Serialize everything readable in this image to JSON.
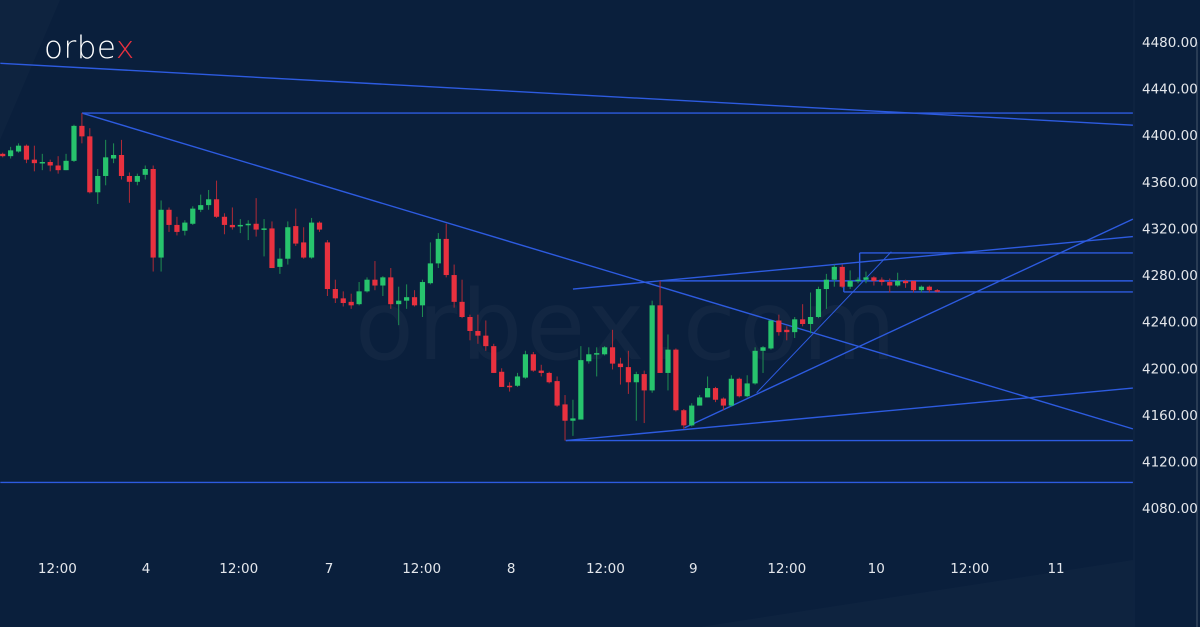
{
  "brand": {
    "logo_main": "orbe",
    "logo_accent": "x",
    "watermark": "orbex.com"
  },
  "colors": {
    "background": "#0a1f3c",
    "up": "#27c46d",
    "down": "#e8313f",
    "trendline": "#2d5be0",
    "axis_text": "#e4e7ec"
  },
  "chart_data": {
    "type": "candlestick",
    "title": "",
    "xlabel": "",
    "ylabel": "",
    "ylim": [
      3978,
      4516
    ],
    "grid": false,
    "y_ticks": [
      "4080.00",
      "4120.00",
      "4160.00",
      "4200.00",
      "4240.00",
      "4280.00",
      "4320.00",
      "4360.00",
      "4400.00",
      "4440.00",
      "4480.00"
    ],
    "y_tick_values": [
      4080,
      4120,
      4160,
      4200,
      4240,
      4280,
      4320,
      4360,
      4400,
      4440,
      4480
    ],
    "x_ticks": [
      {
        "label": "12:00",
        "bar": 6.9
      },
      {
        "label": "4",
        "bar": 18.1
      },
      {
        "label": "12:00",
        "bar": 29.8
      },
      {
        "label": "7",
        "bar": 41.2
      },
      {
        "label": "12:00",
        "bar": 52.9
      },
      {
        "label": "8",
        "bar": 64.2
      },
      {
        "label": "12:00",
        "bar": 76.1
      },
      {
        "label": "9",
        "bar": 87.2
      },
      {
        "label": "12:00",
        "bar": 99.0
      },
      {
        "label": "10",
        "bar": 110.3
      },
      {
        "label": "12:00",
        "bar": 122.1
      },
      {
        "label": "11",
        "bar": 133.0
      }
    ],
    "ohlc": [
      [
        4384,
        4385,
        4381,
        4382
      ],
      [
        4382,
        4390,
        4380,
        4387
      ],
      [
        4386,
        4393,
        4385,
        4391
      ],
      [
        4391,
        4392,
        4376,
        4379
      ],
      [
        4379,
        4391,
        4369,
        4376
      ],
      [
        4376,
        4384,
        4370,
        4377
      ],
      [
        4377,
        4379,
        4369,
        4374
      ],
      [
        4374,
        4382,
        4367,
        4370
      ],
      [
        4370,
        4384,
        4370,
        4378
      ],
      [
        4378,
        4409,
        4377,
        4408
      ],
      [
        4408,
        4419,
        4393,
        4399
      ],
      [
        4399,
        4406,
        4350,
        4351
      ],
      [
        4351,
        4371,
        4341,
        4365
      ],
      [
        4365,
        4396,
        4357,
        4381
      ],
      [
        4380,
        4393,
        4376,
        4383
      ],
      [
        4383,
        4396,
        4362,
        4365
      ],
      [
        4365,
        4368,
        4342,
        4360
      ],
      [
        4360,
        4367,
        4357,
        4365
      ],
      [
        4366,
        4374,
        4362,
        4371
      ],
      [
        4371,
        4374,
        4283,
        4295
      ],
      [
        4295,
        4344,
        4283,
        4336
      ],
      [
        4336,
        4338,
        4317,
        4323
      ],
      [
        4323,
        4330,
        4314,
        4317
      ],
      [
        4318,
        4327,
        4314,
        4325
      ],
      [
        4324,
        4339,
        4323,
        4337
      ],
      [
        4336,
        4349,
        4334,
        4340
      ],
      [
        4340,
        4353,
        4336,
        4345
      ],
      [
        4345,
        4361,
        4329,
        4330
      ],
      [
        4330,
        4333,
        4315,
        4323
      ],
      [
        4323,
        4338,
        4319,
        4321
      ],
      [
        4322,
        4328,
        4316,
        4323
      ],
      [
        4323,
        4327,
        4310,
        4324
      ],
      [
        4324,
        4346,
        4313,
        4319
      ],
      [
        4319,
        4328,
        4296,
        4320
      ],
      [
        4320,
        4326,
        4286,
        4286
      ],
      [
        4287,
        4303,
        4281,
        4294
      ],
      [
        4294,
        4326,
        4289,
        4321
      ],
      [
        4322,
        4337,
        4305,
        4307
      ],
      [
        4308,
        4321,
        4294,
        4295
      ],
      [
        4295,
        4329,
        4294,
        4325
      ],
      [
        4325,
        4326,
        4317,
        4319
      ],
      [
        4308,
        4310,
        4262,
        4268
      ],
      [
        4268,
        4276,
        4256,
        4260
      ],
      [
        4260,
        4266,
        4253,
        4256
      ],
      [
        4257,
        4264,
        4251,
        4254
      ],
      [
        4255,
        4274,
        4254,
        4266
      ],
      [
        4266,
        4278,
        4265,
        4276
      ],
      [
        4276,
        4292,
        4267,
        4271
      ],
      [
        4271,
        4279,
        4262,
        4278
      ],
      [
        4278,
        4286,
        4251,
        4255
      ],
      [
        4255,
        4270,
        4237,
        4258
      ],
      [
        4258,
        4272,
        4251,
        4261
      ],
      [
        4261,
        4267,
        4253,
        4254
      ],
      [
        4254,
        4276,
        4244,
        4274
      ],
      [
        4273,
        4308,
        4272,
        4290
      ],
      [
        4290,
        4316,
        4286,
        4311
      ],
      [
        4311,
        4324,
        4278,
        4280
      ],
      [
        4280,
        4289,
        4252,
        4257
      ],
      [
        4257,
        4276,
        4243,
        4244
      ],
      [
        4244,
        4246,
        4224,
        4232
      ],
      [
        4232,
        4246,
        4221,
        4228
      ],
      [
        4228,
        4241,
        4215,
        4219
      ],
      [
        4219,
        4221,
        4196,
        4196
      ],
      [
        4197,
        4200,
        4184,
        4184
      ],
      [
        4185,
        4188,
        4180,
        4184
      ],
      [
        4185,
        4196,
        4184,
        4193
      ],
      [
        4192,
        4215,
        4191,
        4212
      ],
      [
        4212,
        4214,
        4197,
        4198
      ],
      [
        4198,
        4203,
        4193,
        4196
      ],
      [
        4196,
        4197,
        4187,
        4188
      ],
      [
        4189,
        4193,
        4167,
        4168
      ],
      [
        4169,
        4177,
        4138,
        4155
      ],
      [
        4155,
        4173,
        4142,
        4157
      ],
      [
        4156,
        4219,
        4156,
        4207
      ],
      [
        4206,
        4218,
        4204,
        4212
      ],
      [
        4212,
        4218,
        4193,
        4213
      ],
      [
        4212,
        4219,
        4211,
        4218
      ],
      [
        4218,
        4233,
        4199,
        4204
      ],
      [
        4204,
        4209,
        4186,
        4201
      ],
      [
        4201,
        4215,
        4178,
        4188
      ],
      [
        4188,
        4197,
        4155,
        4195
      ],
      [
        4195,
        4198,
        4153,
        4181
      ],
      [
        4181,
        4258,
        4179,
        4254
      ],
      [
        4254,
        4275,
        4196,
        4196
      ],
      [
        4196,
        4229,
        4181,
        4216
      ],
      [
        4216,
        4217,
        4163,
        4164
      ],
      [
        4164,
        4165,
        4148,
        4151
      ],
      [
        4151,
        4170,
        4150,
        4168
      ],
      [
        4168,
        4177,
        4168,
        4175
      ],
      [
        4175,
        4193,
        4175,
        4183
      ],
      [
        4183,
        4184,
        4171,
        4173
      ],
      [
        4174,
        4175,
        4164,
        4168
      ],
      [
        4168,
        4194,
        4167,
        4191
      ],
      [
        4191,
        4192,
        4175,
        4176
      ],
      [
        4176,
        4194,
        4175,
        4187
      ],
      [
        4187,
        4218,
        4186,
        4215
      ],
      [
        4215,
        4219,
        4196,
        4218
      ],
      [
        4217,
        4241,
        4216,
        4241
      ],
      [
        4241,
        4246,
        4228,
        4231
      ],
      [
        4233,
        4236,
        4224,
        4231
      ],
      [
        4231,
        4244,
        4226,
        4242
      ],
      [
        4242,
        4255,
        4236,
        4238
      ],
      [
        4238,
        4265,
        4230,
        4244
      ],
      [
        4244,
        4270,
        4243,
        4268
      ],
      [
        4268,
        4281,
        4251,
        4276
      ],
      [
        4276,
        4289,
        4270,
        4287
      ],
      [
        4287,
        4289,
        4269,
        4270
      ],
      [
        4270,
        4284,
        4268,
        4275
      ],
      [
        4275,
        4278,
        4273,
        4276
      ],
      [
        4276,
        4283,
        4273,
        4278
      ],
      [
        4278,
        4279,
        4271,
        4275
      ],
      [
        4276,
        4278,
        4271,
        4274
      ],
      [
        4274,
        4277,
        4265,
        4271
      ],
      [
        4271,
        4282,
        4270,
        4275
      ],
      [
        4275,
        4276,
        4269,
        4273
      ],
      [
        4275,
        4275,
        4265,
        4267
      ],
      [
        4267,
        4271,
        4265,
        4270
      ],
      [
        4270,
        4271,
        4265,
        4267
      ],
      [
        4267,
        4268,
        4265,
        4266
      ]
    ],
    "trendlines": [
      {
        "from": [
          -0.3,
          4461.7
        ],
        "to": [
          142.7,
          4408.6
        ]
      },
      {
        "from": [
          10,
          4419
        ],
        "to": [
          142.7,
          4419
        ]
      },
      {
        "from": [
          10,
          4419
        ],
        "to": [
          142.7,
          4148
        ]
      },
      {
        "from": [
          72,
          4268
        ],
        "to": [
          142.7,
          4313
        ]
      },
      {
        "from": [
          71.1,
          4138
        ],
        "to": [
          142.7,
          4183
        ]
      },
      {
        "from": [
          71.1,
          4138
        ],
        "to": [
          142.7,
          4138
        ]
      },
      {
        "from": [
          -0.3,
          4102
        ],
        "to": [
          142.7,
          4102
        ]
      },
      {
        "from": [
          86.1,
          4149
        ],
        "to": [
          142.7,
          4328
        ]
      },
      {
        "from": [
          95.2,
          4179
        ],
        "to": [
          112.2,
          4300
        ],
        "thin": true
      },
      {
        "from": [
          83,
          4275
        ],
        "to": [
          142.7,
          4275
        ]
      },
      {
        "from": [
          108.2,
          4299
        ],
        "to": [
          142.7,
          4299
        ]
      },
      {
        "from": [
          108.2,
          4299
        ],
        "to": [
          108.2,
          4275
        ]
      },
      {
        "from": [
          106.2,
          4265.5
        ],
        "to": [
          142.7,
          4265.5
        ]
      },
      {
        "from": [
          106.2,
          4275
        ],
        "to": [
          106.2,
          4265.5
        ]
      }
    ]
  }
}
